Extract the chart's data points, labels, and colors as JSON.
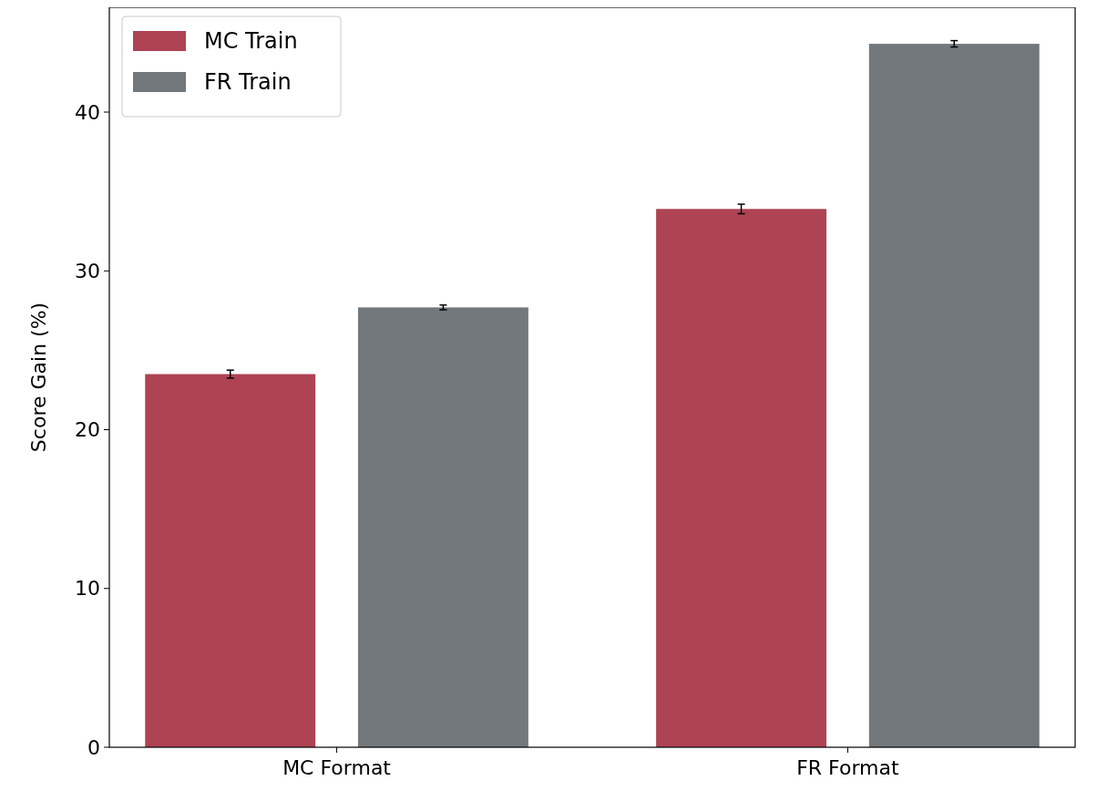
{
  "chart_data": {
    "type": "bar",
    "ylabel": "Score Gain (%)",
    "categories": [
      "MC Format",
      "FR Format"
    ],
    "series": [
      {
        "name": "MC Train",
        "color": "#ae4354",
        "values": [
          23.5,
          33.9
        ],
        "errors": [
          0.25,
          0.3
        ]
      },
      {
        "name": "FR Train",
        "color": "#72787b",
        "values": [
          27.7,
          44.3
        ],
        "errors": [
          0.15,
          0.2
        ]
      }
    ],
    "ylim": [
      0,
      46.6
    ],
    "yticks": [
      0,
      10,
      20,
      30,
      40
    ],
    "grid": false,
    "legend": "top left"
  }
}
